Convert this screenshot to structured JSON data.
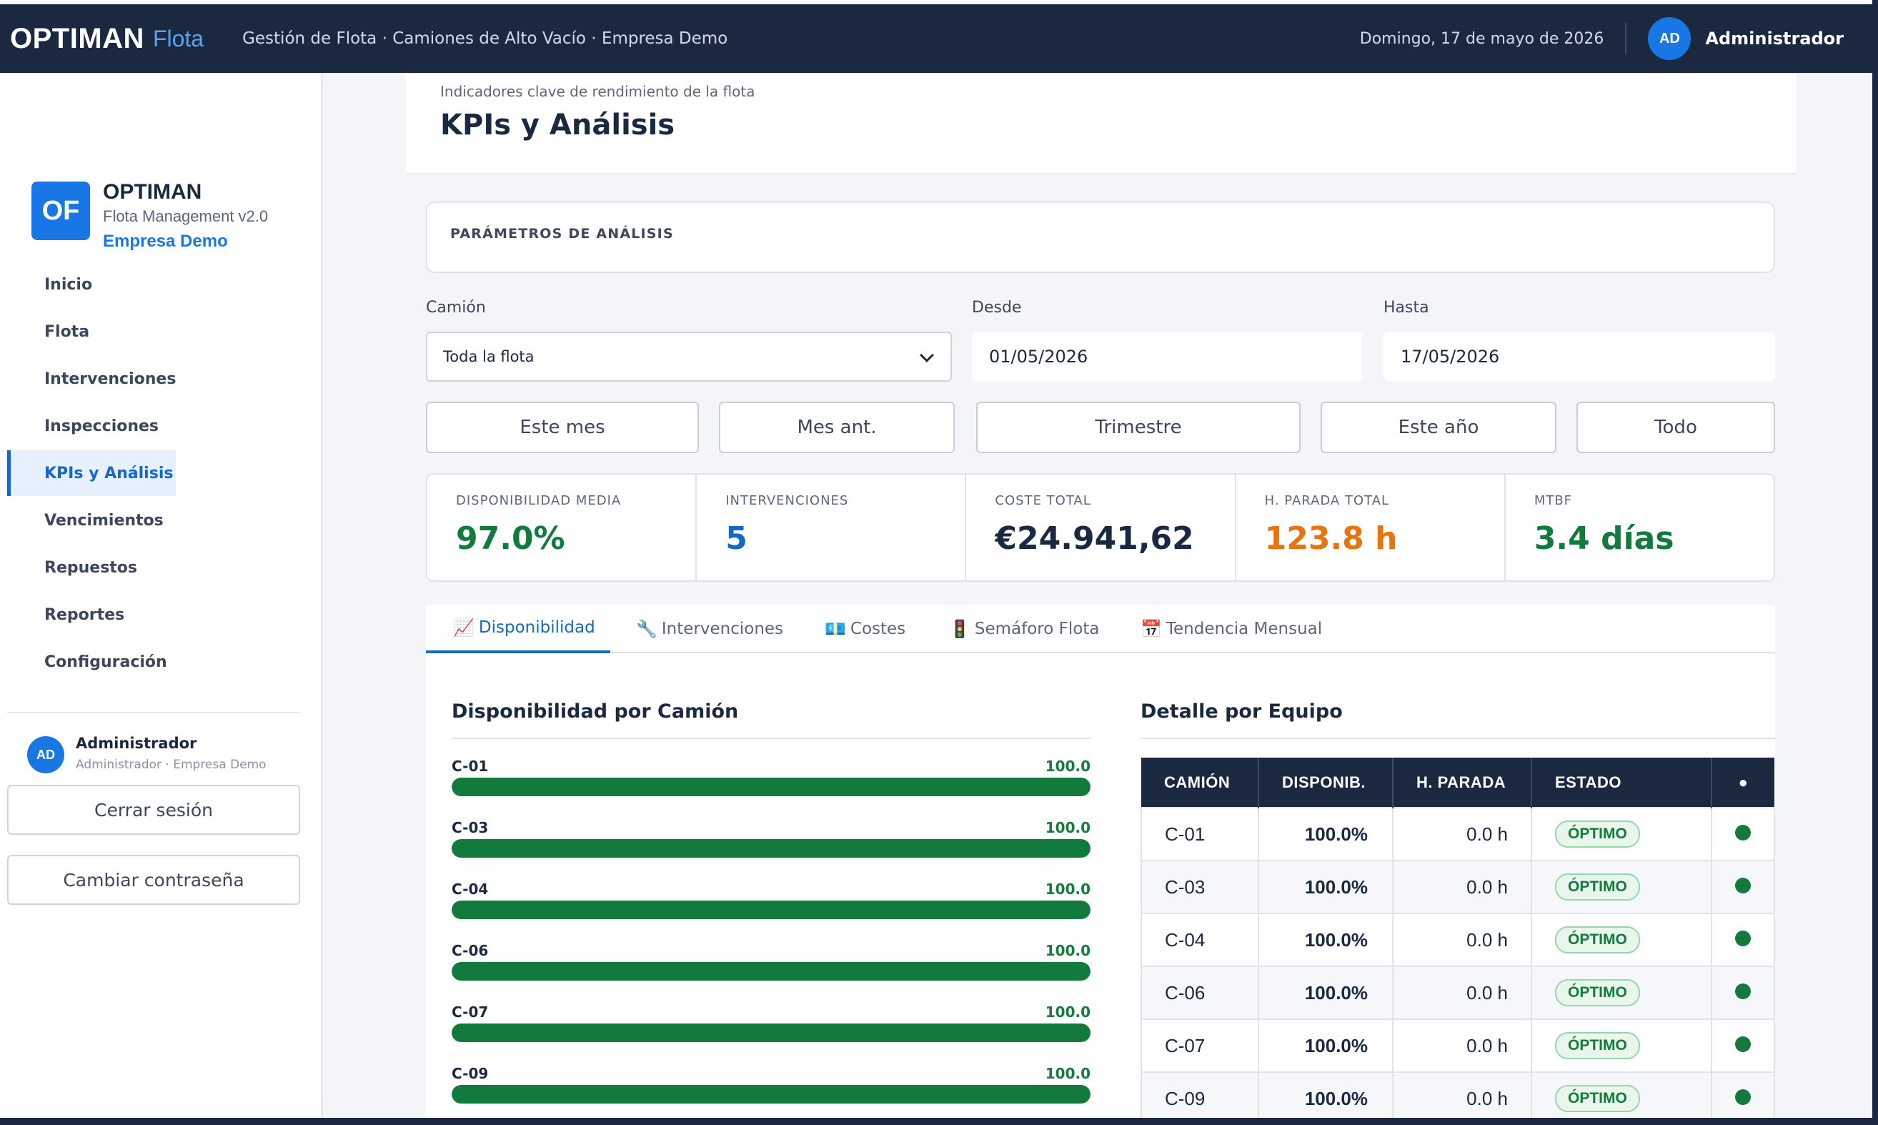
{
  "topbar": {
    "brand": "OPTIMAN",
    "brand_sub": "Flota",
    "breadcrumb": "Gestión de Flota · Camiones de Alto Vacío · Empresa Demo",
    "date": "Domingo, 17 de mayo de 2026",
    "avatar": "AD",
    "user": "Administrador"
  },
  "sidebar": {
    "logo": "OF",
    "app_name": "OPTIMAN",
    "version": "Flota Management v2.0",
    "company": "Empresa Demo",
    "items": [
      {
        "label": "Inicio"
      },
      {
        "label": "Flota"
      },
      {
        "label": "Intervenciones"
      },
      {
        "label": "Inspecciones"
      },
      {
        "label": "KPIs y Análisis"
      },
      {
        "label": "Vencimientos"
      },
      {
        "label": "Repuestos"
      },
      {
        "label": "Reportes"
      },
      {
        "label": "Configuración"
      }
    ],
    "active_index": 4,
    "user_avatar": "AD",
    "user_name": "Administrador",
    "user_role": "Administrador · Empresa Demo",
    "logout": "Cerrar sesión",
    "change_password": "Cambiar contraseña"
  },
  "page": {
    "subtitle": "Indicadores clave de rendimiento de la flota",
    "title": "KPIs y Análisis"
  },
  "params": {
    "title": "PARÁMETROS DE ANÁLISIS",
    "truck_label": "Camión",
    "truck_value": "Toda la flota",
    "from_label": "Desde",
    "from_value": "01/05/2026",
    "to_label": "Hasta",
    "to_value": "17/05/2026",
    "quick": [
      "Este mes",
      "Mes ant.",
      "Trimestre",
      "Este año",
      "Todo"
    ]
  },
  "kpis": [
    {
      "label": "DISPONIBILIDAD MEDIA",
      "value": "97.0%",
      "color": "#137a3d"
    },
    {
      "label": "INTERVENCIONES",
      "value": "5",
      "color": "#1567c8"
    },
    {
      "label": "COSTE TOTAL",
      "value": "€24.941,62",
      "color": "#1b2940"
    },
    {
      "label": "H. PARADA TOTAL",
      "value": "123.8 h",
      "color": "#e8740f"
    },
    {
      "label": "MTBF",
      "value": "3.4 días",
      "color": "#137a3d"
    }
  ],
  "tabs": [
    {
      "icon": "📈",
      "label": "Disponibilidad"
    },
    {
      "icon": "🔧",
      "label": "Intervenciones"
    },
    {
      "icon": "💶",
      "label": "Costes"
    },
    {
      "icon": "🚦",
      "label": "Semáforo Flota"
    },
    {
      "icon": "📅",
      "label": "Tendencia Mensual"
    }
  ],
  "availability": {
    "title": "Disponibilidad por Camión",
    "max": 100,
    "rows": [
      {
        "truck": "C-01",
        "value": 100.0,
        "label": "100.0"
      },
      {
        "truck": "C-03",
        "value": 100.0,
        "label": "100.0"
      },
      {
        "truck": "C-04",
        "value": 100.0,
        "label": "100.0"
      },
      {
        "truck": "C-06",
        "value": 100.0,
        "label": "100.0"
      },
      {
        "truck": "C-07",
        "value": 100.0,
        "label": "100.0"
      },
      {
        "truck": "C-09",
        "value": 100.0,
        "label": "100.0"
      }
    ]
  },
  "detail": {
    "title": "Detalle por Equipo",
    "headers": [
      "CAMIÓN",
      "DISPONIB.",
      "H. PARADA",
      "ESTADO",
      "●"
    ],
    "rows": [
      {
        "truck": "C-01",
        "disp": "100.0%",
        "park": "0.0 h",
        "state": "ÓPTIMO"
      },
      {
        "truck": "C-03",
        "disp": "100.0%",
        "park": "0.0 h",
        "state": "ÓPTIMO"
      },
      {
        "truck": "C-04",
        "disp": "100.0%",
        "park": "0.0 h",
        "state": "ÓPTIMO"
      },
      {
        "truck": "C-06",
        "disp": "100.0%",
        "park": "0.0 h",
        "state": "ÓPTIMO"
      },
      {
        "truck": "C-07",
        "disp": "100.0%",
        "park": "0.0 h",
        "state": "ÓPTIMO"
      },
      {
        "truck": "C-09",
        "disp": "100.0%",
        "park": "0.0 h",
        "state": "ÓPTIMO"
      }
    ]
  }
}
